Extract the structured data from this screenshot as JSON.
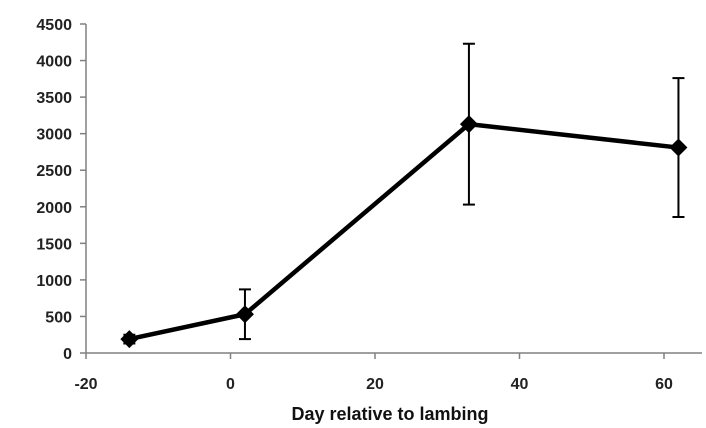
{
  "chart_data": {
    "type": "line",
    "title": "",
    "xlabel": "Day relative to lambing",
    "ylabel": "",
    "xlim": [
      -20,
      65
    ],
    "ylim": [
      0,
      4500
    ],
    "x_ticks": [
      -20,
      0,
      20,
      40,
      60
    ],
    "x_tick_labels": [
      "-20",
      "0",
      "20",
      "40",
      "60"
    ],
    "y_ticks": [
      0,
      500,
      1000,
      1500,
      2000,
      2500,
      3000,
      3500,
      4000,
      4500
    ],
    "y_tick_labels": [
      "0",
      "500",
      "1000",
      "1500",
      "2000",
      "2500",
      "3000",
      "3500",
      "4000",
      "4500"
    ],
    "grid": false,
    "legend": "none",
    "series": [
      {
        "x": [
          -14,
          2,
          33,
          62
        ],
        "y": [
          190,
          530,
          3130,
          2810
        ],
        "error": [
          60,
          340,
          1100,
          950
        ],
        "color": "#000000",
        "marker": "diamond"
      }
    ]
  }
}
